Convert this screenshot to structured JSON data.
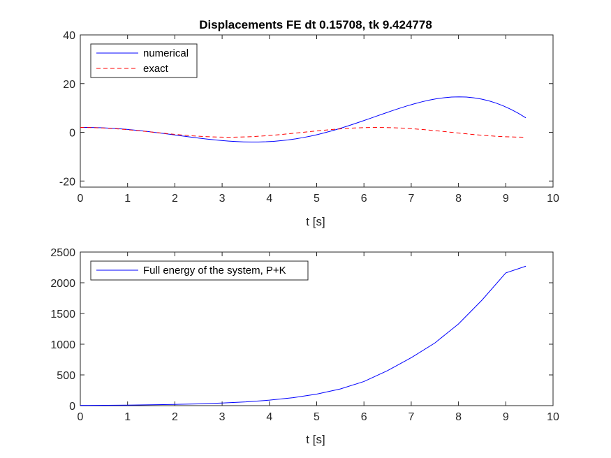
{
  "chart_data": [
    {
      "type": "line",
      "title": "Displacements FE dt 0.15708, tk 9.424778",
      "xlabel": "t [s]",
      "ylabel": "",
      "xlim": [
        0,
        10
      ],
      "ylim": [
        -22.5,
        40
      ],
      "xticks": [
        0,
        1,
        2,
        3,
        4,
        5,
        6,
        7,
        8,
        9,
        10
      ],
      "yticks": [
        -20,
        0,
        20,
        40
      ],
      "legend_position": "top-left",
      "grid": false,
      "series": [
        {
          "name": "numerical",
          "style": "solid",
          "color": "#0000ff",
          "x": [
            0,
            0.15708,
            0.31416,
            0.47124,
            0.62832,
            0.7854,
            0.94248,
            1.09956,
            1.25664,
            1.41372,
            1.5708,
            1.72788,
            1.88496,
            2.04204,
            2.19911,
            2.35619,
            2.51327,
            2.67035,
            2.82743,
            2.98451,
            3.14159,
            3.29867,
            3.45575,
            3.61283,
            3.76991,
            3.92699,
            4.08407,
            4.24115,
            4.39823,
            4.55531,
            4.71239,
            4.86947,
            5.02655,
            5.18363,
            5.34071,
            5.49779,
            5.65487,
            5.81195,
            5.96903,
            6.12611,
            6.28319,
            6.44026,
            6.59734,
            6.75442,
            6.9115,
            7.06858,
            7.22566,
            7.38274,
            7.53982,
            7.6969,
            7.85398,
            8.01106,
            8.16814,
            8.32522,
            8.4823,
            8.63938,
            8.79646,
            8.95354,
            9.11062,
            9.2677,
            9.42478
          ],
          "values": [
            2.0,
            2.0,
            1.951,
            1.853,
            1.706,
            1.513,
            1.278,
            1.003,
            0.693,
            0.353,
            -0.013,
            -0.399,
            -0.798,
            -1.205,
            -1.612,
            -2.011,
            -2.393,
            -2.752,
            -3.079,
            -3.367,
            -3.608,
            -3.795,
            -3.922,
            -3.982,
            -3.969,
            -3.879,
            -3.707,
            -3.451,
            -3.108,
            -2.678,
            -2.161,
            -1.56,
            -0.876,
            -0.114,
            0.72,
            1.62,
            2.576,
            3.58,
            4.619,
            5.682,
            6.755,
            7.824,
            8.873,
            9.885,
            10.844,
            11.731,
            12.53,
            13.221,
            13.787,
            14.212,
            14.478,
            14.57,
            14.474,
            14.178,
            13.672,
            12.946,
            11.996,
            10.818,
            9.413,
            7.786,
            5.943
          ]
        },
        {
          "name": "exact",
          "style": "dashed",
          "color": "#ff0000",
          "x": [
            0,
            0.15708,
            0.31416,
            0.47124,
            0.62832,
            0.7854,
            0.94248,
            1.09956,
            1.25664,
            1.41372,
            1.5708,
            1.72788,
            1.88496,
            2.04204,
            2.19911,
            2.35619,
            2.51327,
            2.67035,
            2.82743,
            2.98451,
            3.14159,
            3.29867,
            3.45575,
            3.61283,
            3.76991,
            3.92699,
            4.08407,
            4.24115,
            4.39823,
            4.55531,
            4.71239,
            4.86947,
            5.02655,
            5.18363,
            5.34071,
            5.49779,
            5.65487,
            5.81195,
            5.96903,
            6.12611,
            6.28319,
            6.44026,
            6.59734,
            6.75442,
            6.9115,
            7.06858,
            7.22566,
            7.38274,
            7.53982,
            7.6969,
            7.85398,
            8.01106,
            8.16814,
            8.32522,
            8.4823,
            8.63938,
            8.79646,
            8.95354,
            9.11062,
            9.2677,
            9.42478
          ],
          "values": [
            2.0,
            1.975,
            1.902,
            1.782,
            1.618,
            1.414,
            1.176,
            0.908,
            0.618,
            0.313,
            0.0,
            -0.313,
            -0.618,
            -0.908,
            -1.176,
            -1.414,
            -1.618,
            -1.782,
            -1.902,
            -1.975,
            -2.0,
            -1.975,
            -1.902,
            -1.782,
            -1.618,
            -1.414,
            -1.176,
            -0.908,
            -0.618,
            -0.313,
            0.0,
            0.313,
            0.618,
            0.908,
            1.176,
            1.414,
            1.618,
            1.782,
            1.902,
            1.975,
            2.0,
            1.975,
            1.902,
            1.782,
            1.618,
            1.414,
            1.176,
            0.908,
            0.618,
            0.313,
            0.0,
            -0.313,
            -0.618,
            -0.908,
            -1.176,
            -1.414,
            -1.618,
            -1.782,
            -1.902,
            -1.975,
            -2.0
          ]
        }
      ]
    },
    {
      "type": "line",
      "title": "",
      "xlabel": "t [s]",
      "ylabel": "",
      "xlim": [
        0,
        10
      ],
      "ylim": [
        0,
        2500
      ],
      "xticks": [
        0,
        1,
        2,
        3,
        4,
        5,
        6,
        7,
        8,
        9,
        10
      ],
      "yticks": [
        0,
        500,
        1000,
        1500,
        2000,
        2500
      ],
      "legend_position": "top-left",
      "grid": false,
      "series": [
        {
          "name": "Full energy of the system, P+K",
          "style": "solid",
          "color": "#0000ff",
          "x": [
            0,
            0.5,
            1,
            1.5,
            2,
            2.5,
            3,
            3.5,
            4,
            4.5,
            5,
            5.5,
            6,
            6.5,
            7,
            7.5,
            8,
            8.5,
            9,
            9.42478
          ],
          "values": [
            4,
            6,
            9,
            14,
            20,
            29,
            42,
            61,
            89,
            129,
            187,
            271,
            393,
            570,
            780,
            1020,
            1330,
            1720,
            2160,
            2270
          ]
        }
      ]
    }
  ]
}
